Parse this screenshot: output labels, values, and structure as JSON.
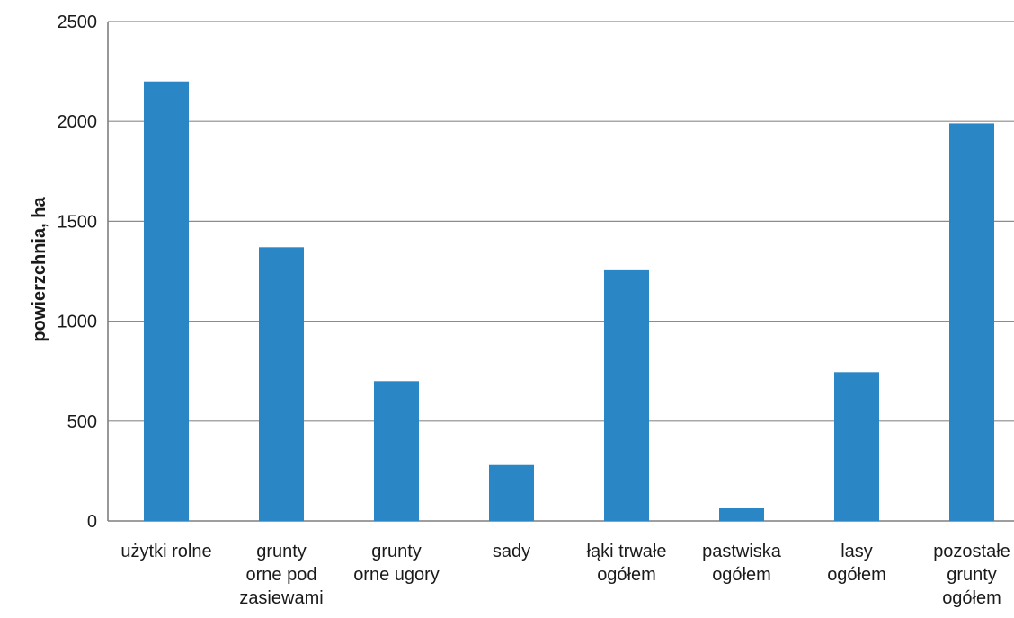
{
  "chart_data": {
    "type": "bar",
    "title": "",
    "xlabel": "",
    "ylabel": "powierzchnia, ha",
    "ylim": [
      0,
      2500
    ],
    "yticks": [
      0,
      500,
      1000,
      1500,
      2000,
      2500
    ],
    "grid": true,
    "categories": [
      [
        "użytki rolne"
      ],
      [
        "grunty",
        "orne pod",
        "zasiewami"
      ],
      [
        "grunty",
        "orne ugory"
      ],
      [
        "sady"
      ],
      [
        "łąki trwałe",
        "ogółem"
      ],
      [
        "pastwiska",
        "ogółem"
      ],
      [
        "lasy",
        "ogółem"
      ],
      [
        "pozostałe",
        "grunty",
        "ogółem"
      ]
    ],
    "values": [
      2200,
      1370,
      700,
      280,
      1255,
      65,
      745,
      1990
    ],
    "colors": {
      "bar": "#2b86c5",
      "grid": "#8c8c8c",
      "axis": "#7f7f7f"
    }
  }
}
